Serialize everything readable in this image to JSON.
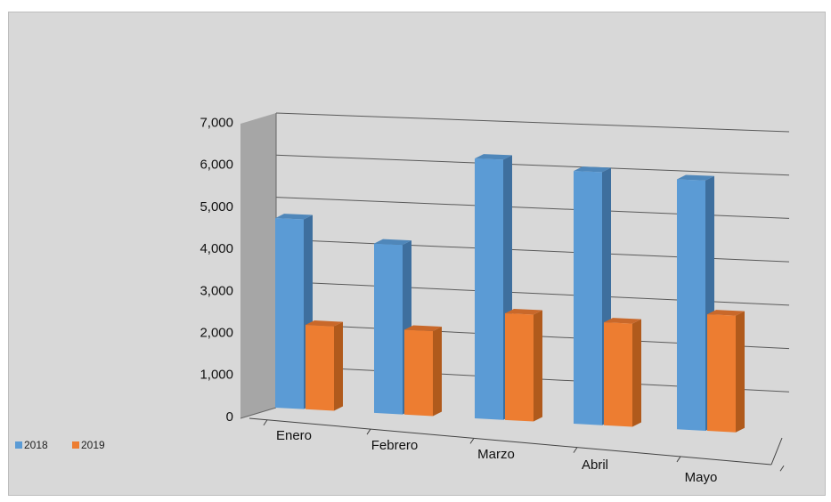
{
  "chart_data": {
    "type": "bar",
    "categories": [
      "Enero",
      "Febrero",
      "Marzo",
      "Abril",
      "Mayo"
    ],
    "series": [
      {
        "name": "2018",
        "values": [
          4500,
          4000,
          6100,
          5900,
          5800
        ],
        "color": "#5b9bd5",
        "side_color": "#3e6f9e",
        "top_color": "#4f87ba"
      },
      {
        "name": "2019",
        "values": [
          2000,
          2000,
          2500,
          2400,
          2700
        ],
        "color": "#ed7d31",
        "side_color": "#b05a1c",
        "top_color": "#c9682a"
      }
    ],
    "ylim": [
      0,
      7000
    ],
    "yticks": [
      "0",
      "1,000",
      "2,000",
      "3,000",
      "4,000",
      "5,000",
      "6,000",
      "7,000"
    ],
    "grid": true,
    "legend_position": "bottom-left",
    "style": "3d-column",
    "back_wall_color": "#a6a6a6"
  }
}
